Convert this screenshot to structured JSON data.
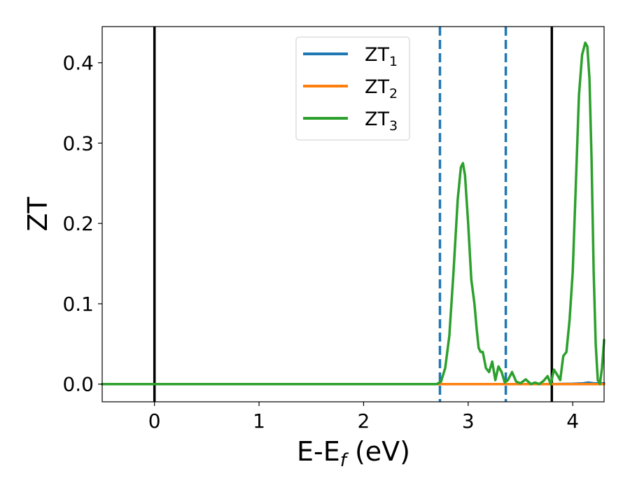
{
  "chart_data": {
    "type": "line",
    "xlabel_main": "E-E",
    "xlabel_sub": "f",
    "xlabel_unit": " (eV)",
    "ylabel": "ZT",
    "xlim": [
      -0.5,
      4.3
    ],
    "ylim": [
      -0.022,
      0.445
    ],
    "xticks": [
      0,
      1,
      2,
      3,
      4
    ],
    "xtick_labels": [
      "0",
      "1",
      "2",
      "3",
      "4"
    ],
    "yticks": [
      0.0,
      0.1,
      0.2,
      0.3,
      0.4
    ],
    "ytick_labels": [
      "0.0",
      "0.1",
      "0.2",
      "0.3",
      "0.4"
    ],
    "grid": false,
    "legend_position": "top-center",
    "vertical_lines": [
      {
        "x": 0.0,
        "style": "solid",
        "color": "#000000"
      },
      {
        "x": 2.73,
        "style": "dashed",
        "color": "#1f77b4"
      },
      {
        "x": 3.36,
        "style": "dashed",
        "color": "#1f77b4"
      },
      {
        "x": 3.8,
        "style": "solid",
        "color": "#000000"
      }
    ],
    "series": [
      {
        "name": "ZT",
        "subscript": "1",
        "color": "#1f77b4",
        "x": [
          -0.5,
          0.0,
          1.0,
          2.0,
          2.7,
          3.0,
          3.5,
          3.8,
          4.0,
          4.1,
          4.15,
          4.2,
          4.3
        ],
        "y": [
          0,
          0,
          0,
          0,
          0,
          0,
          0,
          0,
          0.0005,
          0.001,
          0.002,
          0.001,
          0.001
        ]
      },
      {
        "name": "ZT",
        "subscript": "2",
        "color": "#ff7f0e",
        "x": [
          -0.5,
          2.7,
          4.3
        ],
        "y": [
          0,
          0,
          0
        ]
      },
      {
        "name": "ZT",
        "subscript": "3",
        "color": "#2ca02c",
        "x": [
          -0.5,
          2.7,
          2.74,
          2.78,
          2.82,
          2.86,
          2.9,
          2.93,
          2.95,
          2.97,
          3.0,
          3.03,
          3.06,
          3.08,
          3.1,
          3.12,
          3.14,
          3.17,
          3.2,
          3.23,
          3.26,
          3.29,
          3.32,
          3.35,
          3.38,
          3.42,
          3.46,
          3.5,
          3.55,
          3.6,
          3.64,
          3.68,
          3.72,
          3.76,
          3.79,
          3.82,
          3.85,
          3.88,
          3.91,
          3.94,
          3.97,
          4.0,
          4.03,
          4.06,
          4.09,
          4.12,
          4.14,
          4.16,
          4.18,
          4.2,
          4.22,
          4.24,
          4.26,
          4.28,
          4.3
        ],
        "y": [
          0,
          0,
          0.003,
          0.02,
          0.06,
          0.14,
          0.23,
          0.27,
          0.275,
          0.26,
          0.2,
          0.13,
          0.1,
          0.07,
          0.045,
          0.04,
          0.04,
          0.02,
          0.015,
          0.028,
          0.005,
          0.022,
          0.015,
          0.002,
          0.005,
          0.015,
          0.003,
          0.001,
          0.006,
          0.0,
          0.002,
          0.0,
          0.004,
          0.01,
          0.0,
          0.018,
          0.012,
          0.005,
          0.035,
          0.04,
          0.08,
          0.14,
          0.25,
          0.36,
          0.41,
          0.425,
          0.42,
          0.38,
          0.28,
          0.14,
          0.05,
          0.005,
          0.0,
          0.02,
          0.055
        ]
      }
    ]
  }
}
